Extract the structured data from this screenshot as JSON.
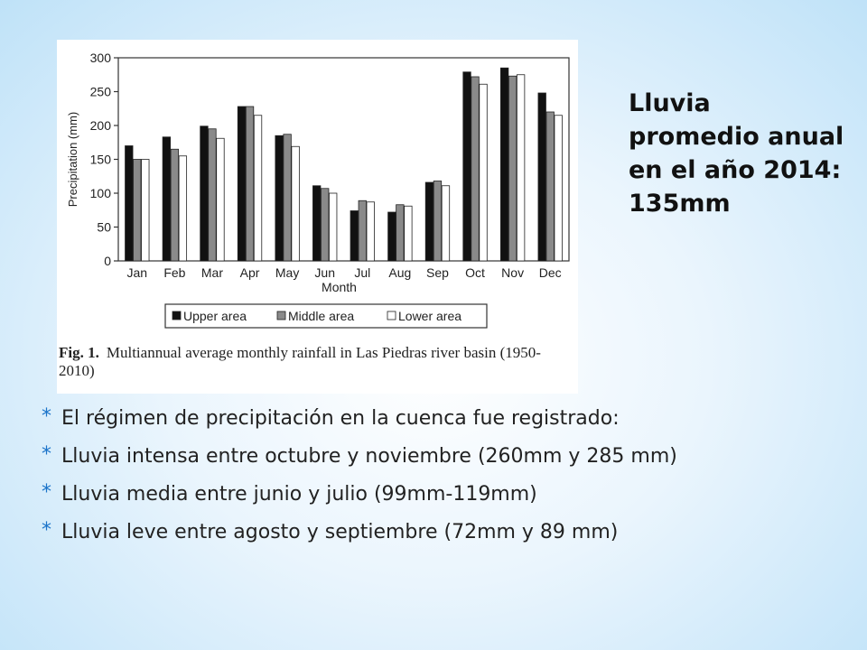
{
  "chart_data": {
    "type": "bar",
    "categories": [
      "Jan",
      "Feb",
      "Mar",
      "Apr",
      "May",
      "Jun",
      "Jul",
      "Aug",
      "Sep",
      "Oct",
      "Nov",
      "Dec"
    ],
    "series": [
      {
        "name": "Upper area",
        "color": "#111111",
        "values": [
          170,
          183,
          199,
          228,
          185,
          111,
          74,
          72,
          116,
          279,
          285,
          248
        ]
      },
      {
        "name": "Middle area",
        "color": "#8a8a8a",
        "values": [
          150,
          165,
          195,
          228,
          187,
          107,
          89,
          83,
          118,
          272,
          273,
          220
        ]
      },
      {
        "name": "Lower area",
        "color": "#ffffff",
        "values": [
          150,
          155,
          181,
          215,
          169,
          100,
          87,
          81,
          111,
          261,
          275,
          215
        ]
      }
    ],
    "xlabel": "Month",
    "ylabel": "Precipitation (mm)",
    "ylim": [
      0,
      300
    ],
    "yticks": [
      "0",
      "50",
      "100",
      "150",
      "200",
      "250",
      "300"
    ],
    "legend_position": "bottom",
    "grid": false
  },
  "caption": {
    "label": "Fig. 1.",
    "text": "Multiannual average monthly rainfall in Las Piedras river basin (1950-2010)"
  },
  "side_title": "Lluvia promedio anual en el año 2014: 135mm",
  "bullets": [
    "El régimen de precipitación en la cuenca fue registrado:",
    "Lluvia intensa entre octubre y noviembre (260mm y 285 mm)",
    "Lluvia media entre junio y julio (99mm-119mm)",
    "Lluvia leve entre agosto y septiembre (72mm y 89 mm)"
  ],
  "bullet_symbol": "*"
}
